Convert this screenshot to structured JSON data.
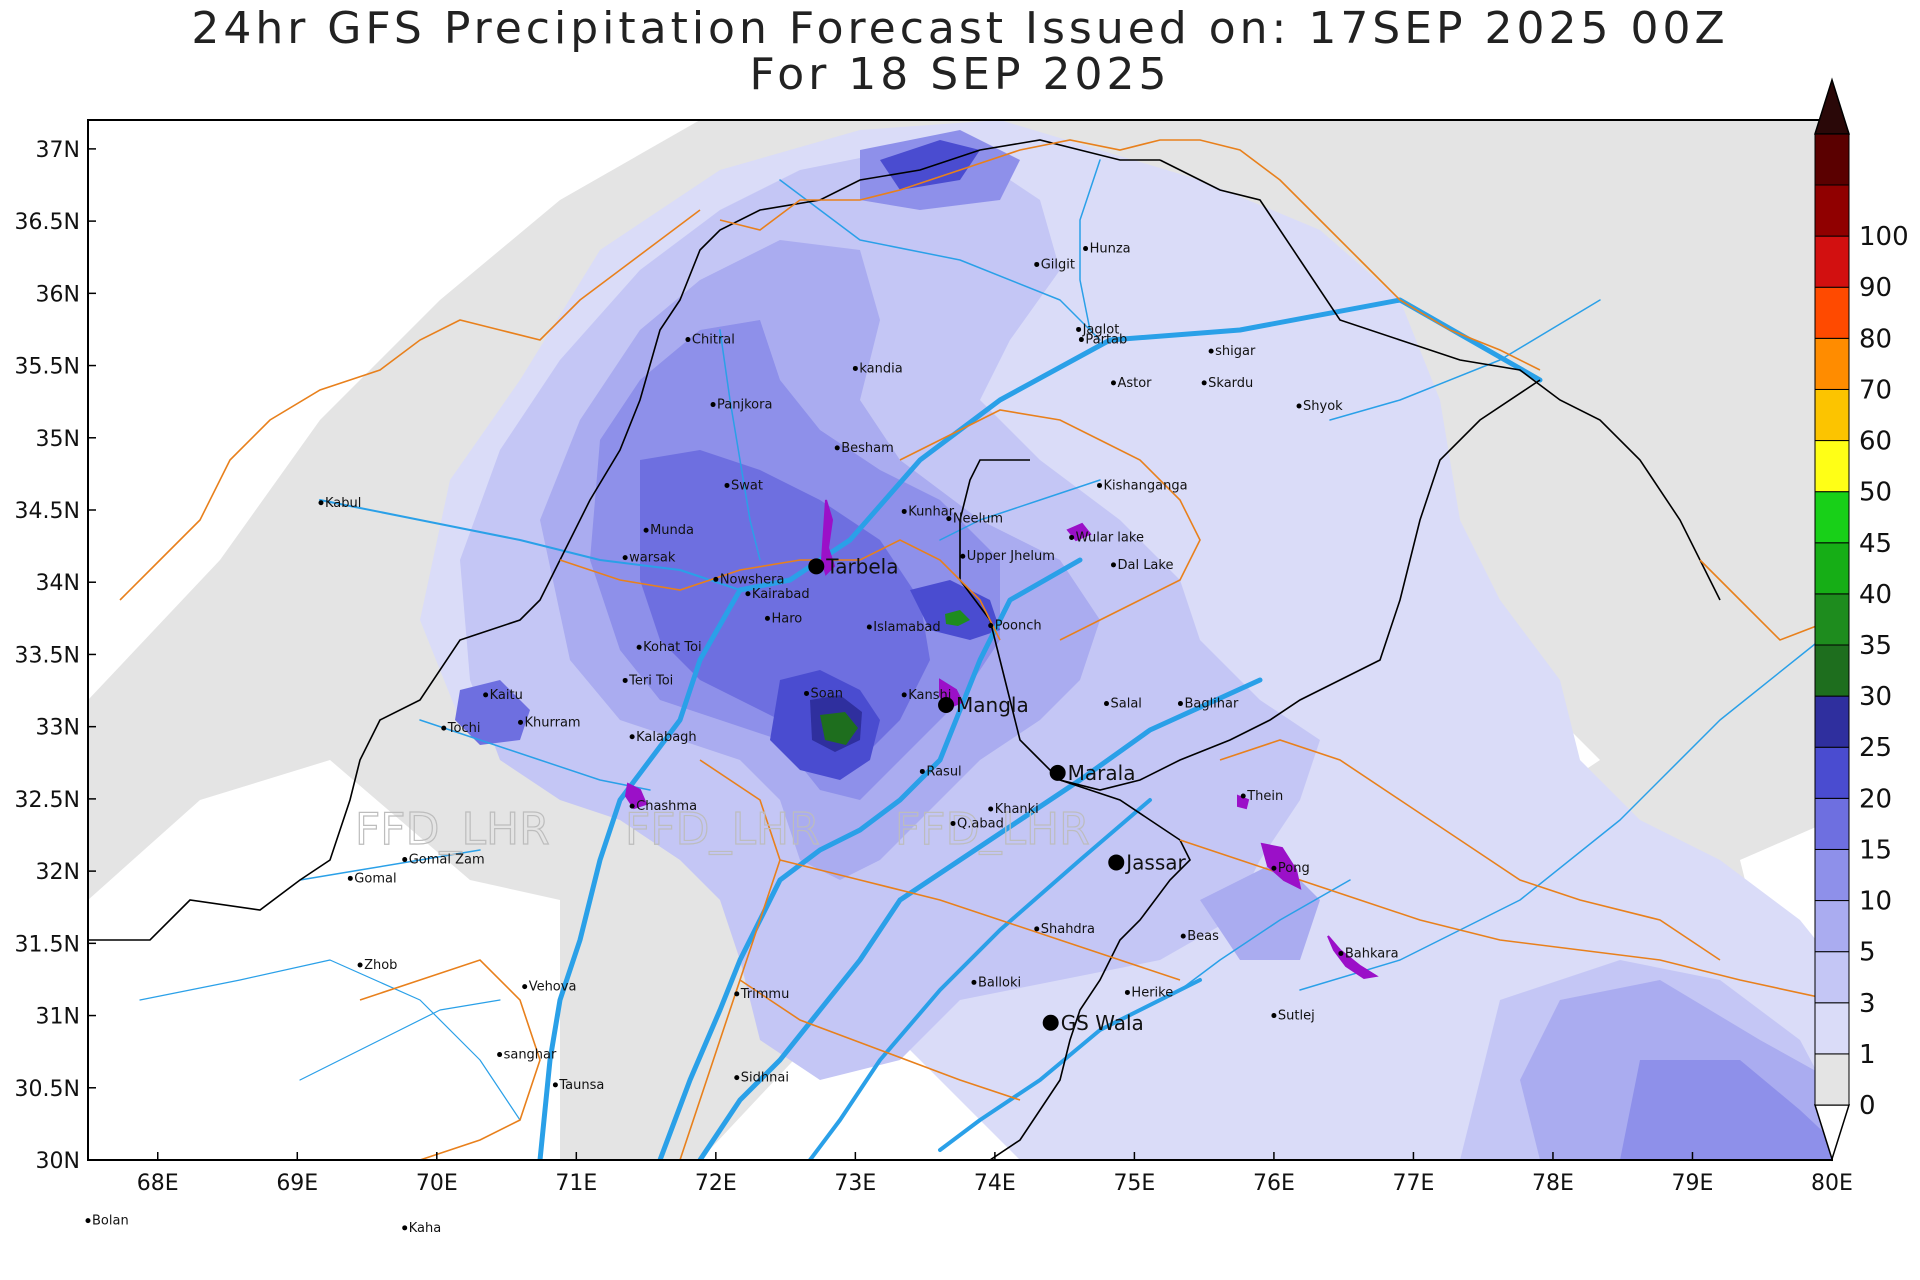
{
  "title": {
    "line1": "24hr GFS Precipitation Forecast Issued on:  17SEP 2025 00Z",
    "line2": "For 18 SEP 2025"
  },
  "watermark": [
    "FFD_LHR",
    "FFD_LHR",
    "FFD_LHR"
  ],
  "map": {
    "lon_range": [
      67.5,
      80.0
    ],
    "lat_range": [
      30.0,
      37.2
    ],
    "x_ticks": [
      "68E",
      "69E",
      "70E",
      "71E",
      "72E",
      "73E",
      "74E",
      "75E",
      "76E",
      "77E",
      "78E",
      "79E",
      "80E"
    ],
    "y_ticks": [
      "30N",
      "30.5N",
      "31N",
      "31.5N",
      "32N",
      "32.5N",
      "33N",
      "33.5N",
      "34N",
      "34.5N",
      "35N",
      "35.5N",
      "36N",
      "36.5N",
      "37N"
    ],
    "colors": {
      "river": "#2aa0e8",
      "border": "#000000",
      "admin": "#e8801c",
      "lake": "#9b10c8",
      "nodata": "#e4e4e4"
    }
  },
  "places": [
    {
      "name": "Kabul",
      "lon": 69.17,
      "lat": 34.55,
      "big": false
    },
    {
      "name": "Chitral",
      "lon": 71.8,
      "lat": 35.68,
      "big": false
    },
    {
      "name": "Panjkora",
      "lon": 71.98,
      "lat": 35.23,
      "big": false
    },
    {
      "name": "Gilgit",
      "lon": 74.3,
      "lat": 36.2,
      "big": false
    },
    {
      "name": "Hunza",
      "lon": 74.65,
      "lat": 36.31,
      "big": false
    },
    {
      "name": "Jaglot",
      "lon": 74.6,
      "lat": 35.75,
      "big": false
    },
    {
      "name": "Partab",
      "lon": 74.62,
      "lat": 35.68,
      "big": false
    },
    {
      "name": "shigar",
      "lon": 75.55,
      "lat": 35.6,
      "big": false
    },
    {
      "name": "kandia",
      "lon": 73.0,
      "lat": 35.48,
      "big": false
    },
    {
      "name": "Astor",
      "lon": 74.85,
      "lat": 35.38,
      "big": false
    },
    {
      "name": "Skardu",
      "lon": 75.5,
      "lat": 35.38,
      "big": false
    },
    {
      "name": "Shyok",
      "lon": 76.18,
      "lat": 35.22,
      "big": false
    },
    {
      "name": "Besham",
      "lon": 72.87,
      "lat": 34.93,
      "big": false
    },
    {
      "name": "Swat",
      "lon": 72.08,
      "lat": 34.67,
      "big": false
    },
    {
      "name": "Kishanganga",
      "lon": 74.75,
      "lat": 34.67,
      "big": false
    },
    {
      "name": "Kunhar",
      "lon": 73.35,
      "lat": 34.49,
      "big": false
    },
    {
      "name": "Neelum",
      "lon": 73.67,
      "lat": 34.44,
      "big": false
    },
    {
      "name": "Munda",
      "lon": 71.5,
      "lat": 34.36,
      "big": false
    },
    {
      "name": "Wular lake",
      "lon": 74.55,
      "lat": 34.31,
      "big": false
    },
    {
      "name": "warsak",
      "lon": 71.35,
      "lat": 34.17,
      "big": false
    },
    {
      "name": "Upper Jhelum",
      "lon": 73.77,
      "lat": 34.18,
      "big": false
    },
    {
      "name": "Dal Lake",
      "lon": 74.85,
      "lat": 34.12,
      "big": false
    },
    {
      "name": "Nowshera",
      "lon": 72.0,
      "lat": 34.02,
      "big": false
    },
    {
      "name": "Kairabad",
      "lon": 72.23,
      "lat": 33.92,
      "big": false
    },
    {
      "name": "Haro",
      "lon": 72.37,
      "lat": 33.75,
      "big": false
    },
    {
      "name": "Islamabad",
      "lon": 73.1,
      "lat": 33.69,
      "big": false
    },
    {
      "name": "Poonch",
      "lon": 73.97,
      "lat": 33.7,
      "big": false
    },
    {
      "name": "Kohat Toi",
      "lon": 71.45,
      "lat": 33.55,
      "big": false
    },
    {
      "name": "Teri Toi",
      "lon": 71.35,
      "lat": 33.32,
      "big": false
    },
    {
      "name": "Kaitu",
      "lon": 70.35,
      "lat": 33.22,
      "big": false
    },
    {
      "name": "Soan",
      "lon": 72.65,
      "lat": 33.23,
      "big": false
    },
    {
      "name": "Kanshi",
      "lon": 73.35,
      "lat": 33.22,
      "big": false
    },
    {
      "name": "Salal",
      "lon": 74.8,
      "lat": 33.16,
      "big": false
    },
    {
      "name": "Baglihar",
      "lon": 75.33,
      "lat": 33.16,
      "big": false
    },
    {
      "name": "Khurram",
      "lon": 70.6,
      "lat": 33.03,
      "big": false
    },
    {
      "name": "Tochi",
      "lon": 70.05,
      "lat": 32.99,
      "big": false
    },
    {
      "name": "Kalabagh",
      "lon": 71.4,
      "lat": 32.93,
      "big": false
    },
    {
      "name": "Rasul",
      "lon": 73.48,
      "lat": 32.69,
      "big": false
    },
    {
      "name": "Chashma",
      "lon": 71.4,
      "lat": 32.45,
      "big": false
    },
    {
      "name": "Thein",
      "lon": 75.78,
      "lat": 32.52,
      "big": false
    },
    {
      "name": "Khanki",
      "lon": 73.97,
      "lat": 32.43,
      "big": false
    },
    {
      "name": "Q.abad",
      "lon": 73.7,
      "lat": 32.33,
      "big": false
    },
    {
      "name": "Gomal Zam",
      "lon": 69.77,
      "lat": 32.08,
      "big": false
    },
    {
      "name": "Gomal",
      "lon": 69.38,
      "lat": 31.95,
      "big": false
    },
    {
      "name": "Pong",
      "lon": 76.0,
      "lat": 32.02,
      "big": false
    },
    {
      "name": "Shahdra",
      "lon": 74.3,
      "lat": 31.6,
      "big": false
    },
    {
      "name": "Beas",
      "lon": 75.35,
      "lat": 31.55,
      "big": false
    },
    {
      "name": "Zhob",
      "lon": 69.45,
      "lat": 31.35,
      "big": false
    },
    {
      "name": "Bahkara",
      "lon": 76.48,
      "lat": 31.43,
      "big": false
    },
    {
      "name": "Vehova",
      "lon": 70.63,
      "lat": 31.2,
      "big": false
    },
    {
      "name": "Balloki",
      "lon": 73.85,
      "lat": 31.23,
      "big": false
    },
    {
      "name": "Trimmu",
      "lon": 72.15,
      "lat": 31.15,
      "big": false
    },
    {
      "name": "Herike",
      "lon": 74.95,
      "lat": 31.16,
      "big": false
    },
    {
      "name": "Sutlej",
      "lon": 76.0,
      "lat": 31.0,
      "big": false
    },
    {
      "name": "sanghar",
      "lon": 70.45,
      "lat": 30.73,
      "big": false
    },
    {
      "name": "Sidhnai",
      "lon": 72.15,
      "lat": 30.57,
      "big": false
    },
    {
      "name": "Taunsa",
      "lon": 70.85,
      "lat": 30.52,
      "big": false
    },
    {
      "name": "Bolan",
      "lon": 67.5,
      "lat": 29.58,
      "big": false
    },
    {
      "name": "Kaha",
      "lon": 69.77,
      "lat": 29.53,
      "big": false
    },
    {
      "name": "Tarbela",
      "lon": 72.72,
      "lat": 34.11,
      "big": true
    },
    {
      "name": "Mangla",
      "lon": 73.65,
      "lat": 33.15,
      "big": true
    },
    {
      "name": "Marala",
      "lon": 74.45,
      "lat": 32.68,
      "big": true
    },
    {
      "name": "Jassar",
      "lon": 74.87,
      "lat": 32.06,
      "big": true
    },
    {
      "name": "GS Wala",
      "lon": 74.4,
      "lat": 30.95,
      "big": true
    }
  ],
  "colorbar": {
    "labels": [
      "0",
      "1",
      "3",
      "5",
      "10",
      "15",
      "20",
      "25",
      "30",
      "35",
      "40",
      "45",
      "50",
      "60",
      "70",
      "80",
      "90",
      "100"
    ],
    "colors": [
      "#e4e4e4",
      "#dadcf8",
      "#c4c6f5",
      "#aaacf0",
      "#8e90ea",
      "#6e6fe0",
      "#4a4cd0",
      "#2f2f9e",
      "#1e6e1e",
      "#1e8c1e",
      "#16ae16",
      "#18d018",
      "#ffff16",
      "#fcc400",
      "#ff8c00",
      "#ff4a00",
      "#d21010",
      "#900000",
      "#5a0000",
      "#2a0808"
    ]
  }
}
